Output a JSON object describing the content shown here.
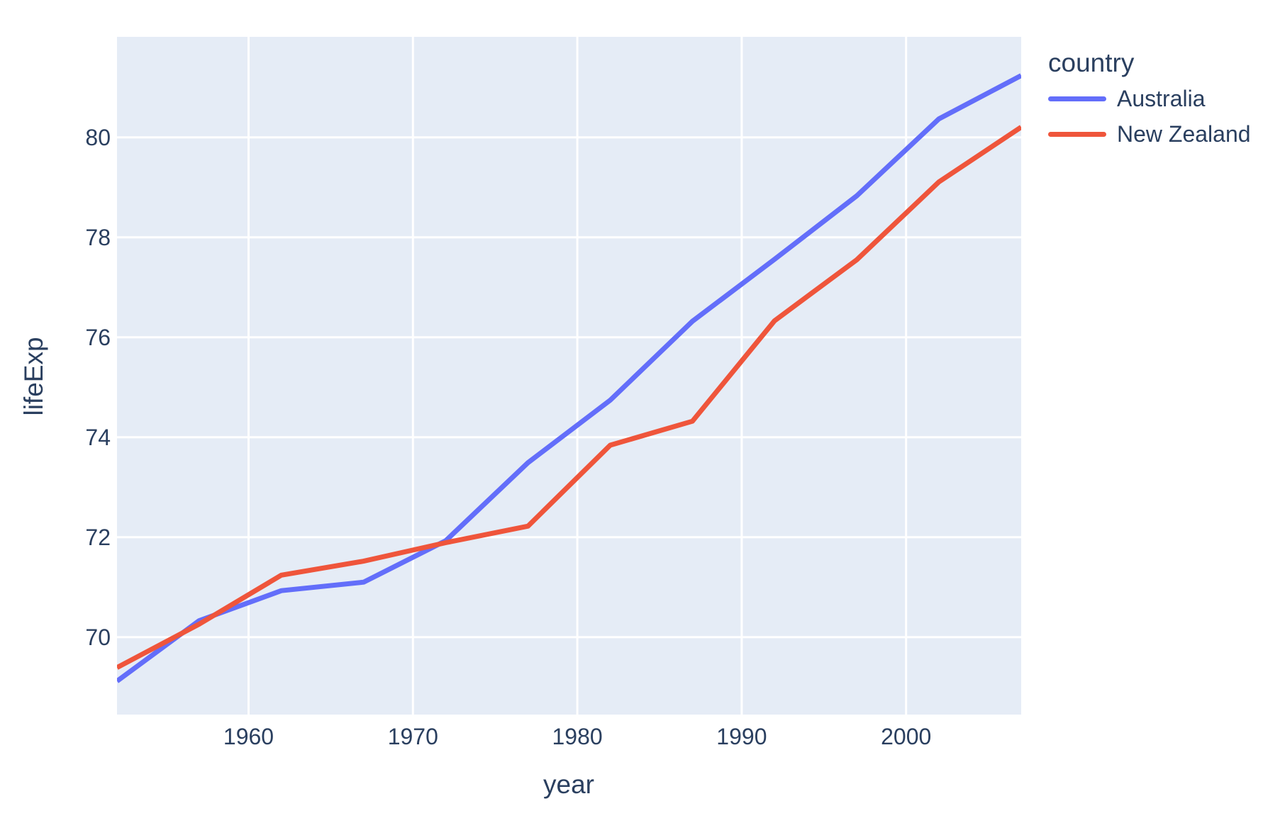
{
  "figure": {
    "background": "#ffffff",
    "plot_background": "#e5ecf6",
    "grid_color": "#ffffff",
    "text_color": "#2a3f5f",
    "series_line_width": 7,
    "grid_line_width": 3
  },
  "chart_data": {
    "type": "line",
    "title": "",
    "xlabel": "year",
    "ylabel": "lifeExp",
    "legend_title": "country",
    "legend_position": "right",
    "grid": true,
    "x": [
      1952,
      1957,
      1962,
      1967,
      1972,
      1977,
      1982,
      1987,
      1992,
      1997,
      2002,
      2007
    ],
    "series": [
      {
        "name": "Australia",
        "color": "#636efa",
        "values": [
          69.12,
          70.33,
          70.93,
          71.1,
          71.93,
          73.49,
          74.74,
          76.32,
          77.56,
          78.83,
          80.37,
          81.235
        ]
      },
      {
        "name": "New Zealand",
        "color": "#ef553b",
        "values": [
          69.39,
          70.26,
          71.24,
          71.52,
          71.89,
          72.22,
          73.84,
          74.32,
          76.33,
          77.55,
          79.11,
          80.204
        ]
      }
    ],
    "xlim": [
      1952,
      2007
    ],
    "ylim": [
      68.45,
      82.01
    ],
    "xticks": [
      1960,
      1970,
      1980,
      1990,
      2000
    ],
    "yticks": [
      70,
      72,
      74,
      76,
      78,
      80
    ]
  }
}
